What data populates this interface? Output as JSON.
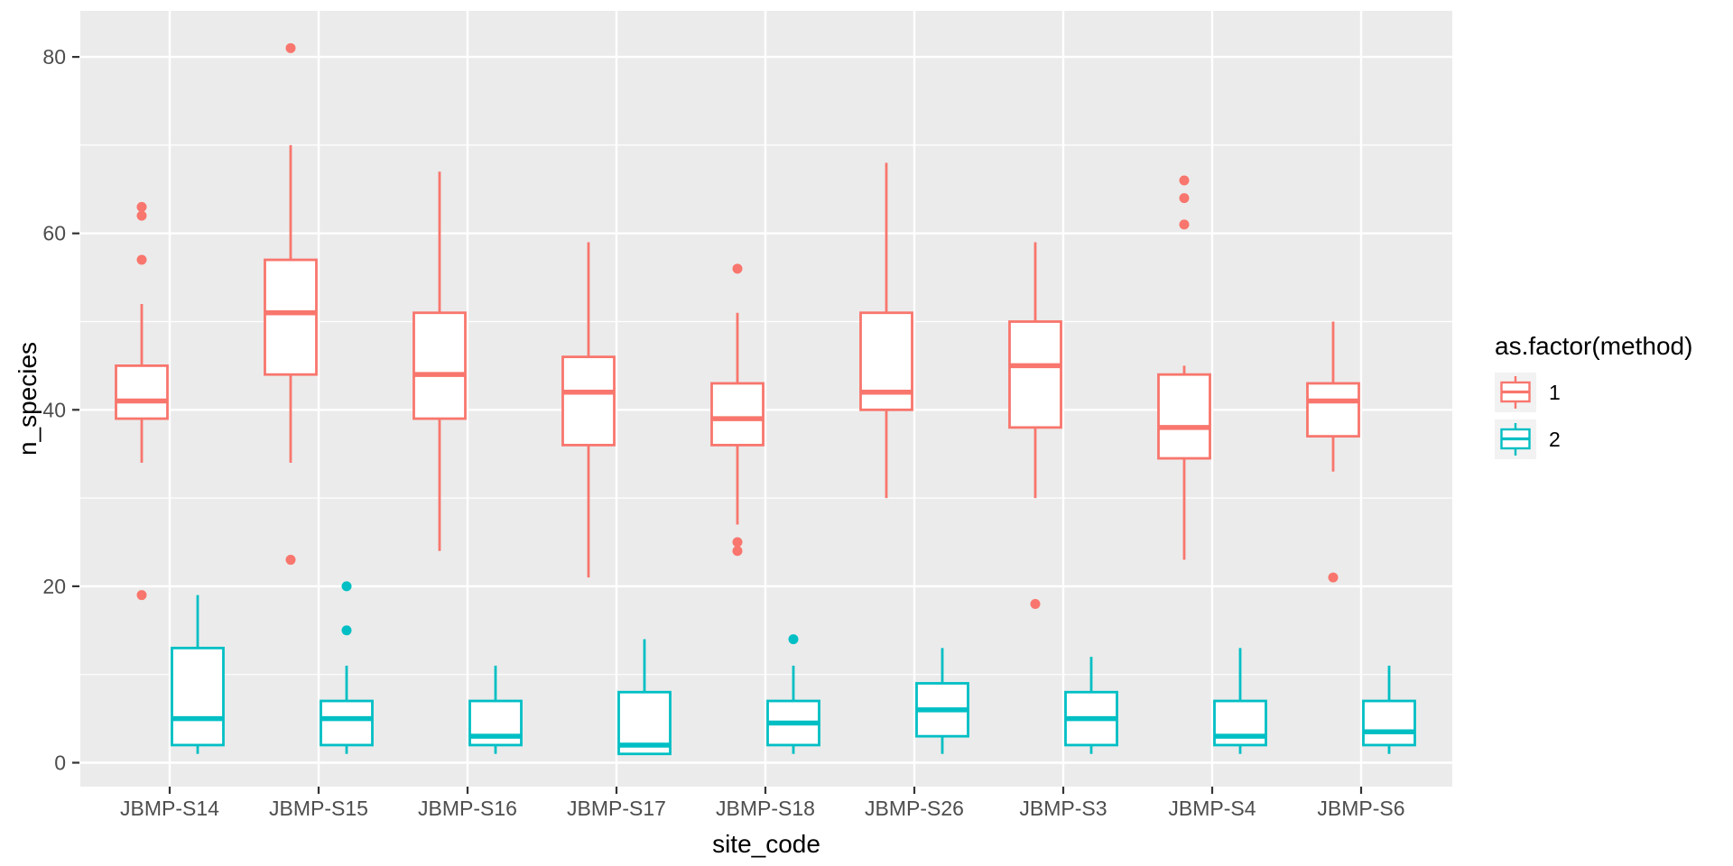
{
  "palette": {
    "method1": "#F8766D",
    "method2": "#00BFC4",
    "panel_bg": "#EBEBEB",
    "grid": "#FFFFFF",
    "axis_text": "#4D4D4D",
    "axis_title": "#000000",
    "tick_mark": "#333333",
    "legend_key_bg": "#F2F2F2",
    "box_fill": "#FFFFFF"
  },
  "chart_data": {
    "type": "boxplot",
    "title": "",
    "xlabel": "site_code",
    "ylabel": "n_species",
    "categories": [
      "JBMP-S14",
      "JBMP-S15",
      "JBMP-S16",
      "JBMP-S17",
      "JBMP-S18",
      "JBMP-S26",
      "JBMP-S3",
      "JBMP-S4",
      "JBMP-S6"
    ],
    "axes": {
      "y_major_ticks": [
        0,
        20,
        40,
        60,
        80
      ],
      "y_minor_gridlines": [
        10,
        30,
        50,
        70
      ],
      "ylim": [
        -3,
        85
      ],
      "grid": "on"
    },
    "legend": {
      "title": "as.factor(method)",
      "position": "right",
      "items": [
        {
          "label": "1",
          "color": "#F8766D"
        },
        {
          "label": "2",
          "color": "#00BFC4"
        }
      ]
    },
    "series": [
      {
        "name": "1",
        "color": "#F8766D",
        "boxes": [
          {
            "site": "JBMP-S14",
            "lo": 34,
            "q1": 39,
            "med": 41,
            "q3": 45,
            "hi": 52,
            "outliers": [
              63,
              62,
              57,
              19
            ]
          },
          {
            "site": "JBMP-S15",
            "lo": 34,
            "q1": 44,
            "med": 51,
            "q3": 57,
            "hi": 70,
            "outliers": [
              81,
              23
            ]
          },
          {
            "site": "JBMP-S16",
            "lo": 24,
            "q1": 39,
            "med": 44,
            "q3": 51,
            "hi": 67,
            "outliers": []
          },
          {
            "site": "JBMP-S17",
            "lo": 21,
            "q1": 36,
            "med": 42,
            "q3": 46,
            "hi": 59,
            "outliers": []
          },
          {
            "site": "JBMP-S18",
            "lo": 27,
            "q1": 36,
            "med": 39,
            "q3": 43,
            "hi": 51,
            "outliers": [
              56,
              25,
              24
            ]
          },
          {
            "site": "JBMP-S26",
            "lo": 30,
            "q1": 40,
            "med": 42,
            "q3": 51,
            "hi": 68,
            "outliers": []
          },
          {
            "site": "JBMP-S3",
            "lo": 30,
            "q1": 38,
            "med": 45,
            "q3": 50,
            "hi": 59,
            "outliers": [
              18
            ]
          },
          {
            "site": "JBMP-S4",
            "lo": 23,
            "q1": 34.5,
            "med": 38,
            "q3": 44,
            "hi": 45,
            "outliers": [
              66,
              64,
              61
            ]
          },
          {
            "site": "JBMP-S6",
            "lo": 33,
            "q1": 37,
            "med": 41,
            "q3": 43,
            "hi": 50,
            "outliers": [
              21
            ]
          }
        ]
      },
      {
        "name": "2",
        "color": "#00BFC4",
        "boxes": [
          {
            "site": "JBMP-S14",
            "lo": 1,
            "q1": 2,
            "med": 5,
            "q3": 13,
            "hi": 19,
            "outliers": []
          },
          {
            "site": "JBMP-S15",
            "lo": 1,
            "q1": 2,
            "med": 5,
            "q3": 7,
            "hi": 11,
            "outliers": [
              20,
              15
            ]
          },
          {
            "site": "JBMP-S16",
            "lo": 1,
            "q1": 2,
            "med": 3,
            "q3": 7,
            "hi": 11,
            "outliers": []
          },
          {
            "site": "JBMP-S17",
            "lo": 1,
            "q1": 1,
            "med": 2,
            "q3": 8,
            "hi": 14,
            "outliers": []
          },
          {
            "site": "JBMP-S18",
            "lo": 1,
            "q1": 2,
            "med": 4.5,
            "q3": 7,
            "hi": 11,
            "outliers": [
              14
            ]
          },
          {
            "site": "JBMP-S26",
            "lo": 1,
            "q1": 3,
            "med": 6,
            "q3": 9,
            "hi": 13,
            "outliers": []
          },
          {
            "site": "JBMP-S3",
            "lo": 1,
            "q1": 2,
            "med": 5,
            "q3": 8,
            "hi": 12,
            "outliers": []
          },
          {
            "site": "JBMP-S4",
            "lo": 1,
            "q1": 2,
            "med": 3,
            "q3": 7,
            "hi": 13,
            "outliers": []
          },
          {
            "site": "JBMP-S6",
            "lo": 1,
            "q1": 2,
            "med": 3.5,
            "q3": 7,
            "hi": 11,
            "outliers": []
          }
        ]
      }
    ]
  }
}
